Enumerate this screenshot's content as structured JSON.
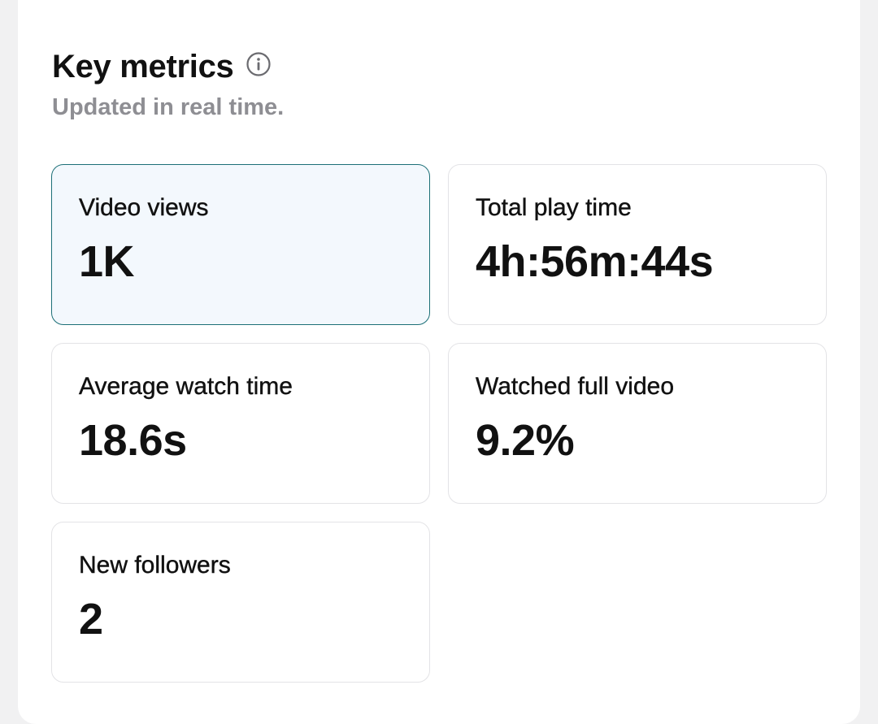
{
  "header": {
    "title": "Key metrics",
    "subtitle": "Updated in real time.",
    "info_icon": "info-circle-icon"
  },
  "metrics": [
    {
      "label": "Video views",
      "value": "1K",
      "selected": true
    },
    {
      "label": "Total play time",
      "value": "4h:56m:44s",
      "selected": false
    },
    {
      "label": "Average watch time",
      "value": "18.6s",
      "selected": false
    },
    {
      "label": "Watched full video",
      "value": "9.2%",
      "selected": false
    },
    {
      "label": "New followers",
      "value": "2",
      "selected": false
    }
  ],
  "colors": {
    "selected_border": "#1c6f77",
    "selected_background": "#f3f8fd",
    "card_border": "#e3e3e6",
    "subtitle": "#8e8e93"
  }
}
